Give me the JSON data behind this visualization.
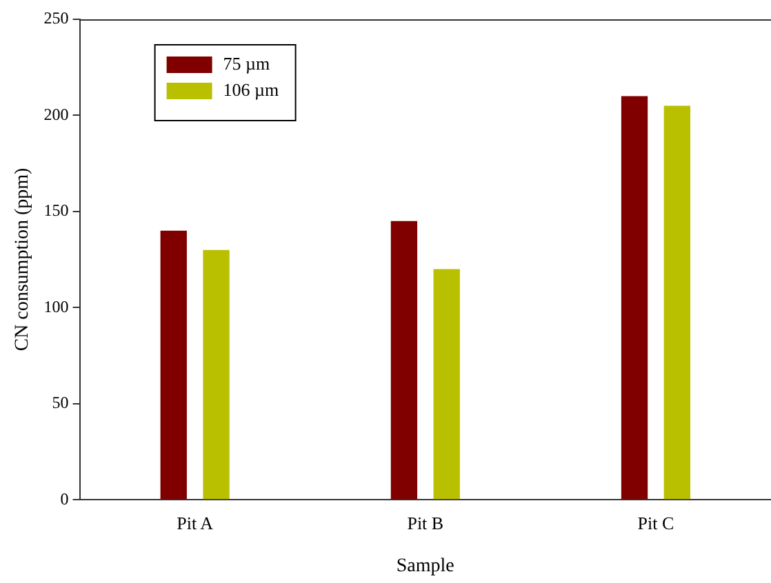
{
  "chart_data": {
    "type": "bar",
    "xlabel": "Sample",
    "ylabel": "CN consumption (ppm)",
    "categories": [
      "Pit A",
      "Pit B",
      "Pit C"
    ],
    "series": [
      {
        "name": "75 µm",
        "color": "#800000",
        "values": [
          140,
          145,
          210
        ]
      },
      {
        "name": "106 µm",
        "color": "#b9c000",
        "values": [
          130,
          120,
          205
        ]
      }
    ],
    "ylim": [
      0,
      250
    ],
    "yticks": [
      0,
      50,
      100,
      150,
      200,
      250
    ],
    "grid": false,
    "legend": "top left"
  }
}
